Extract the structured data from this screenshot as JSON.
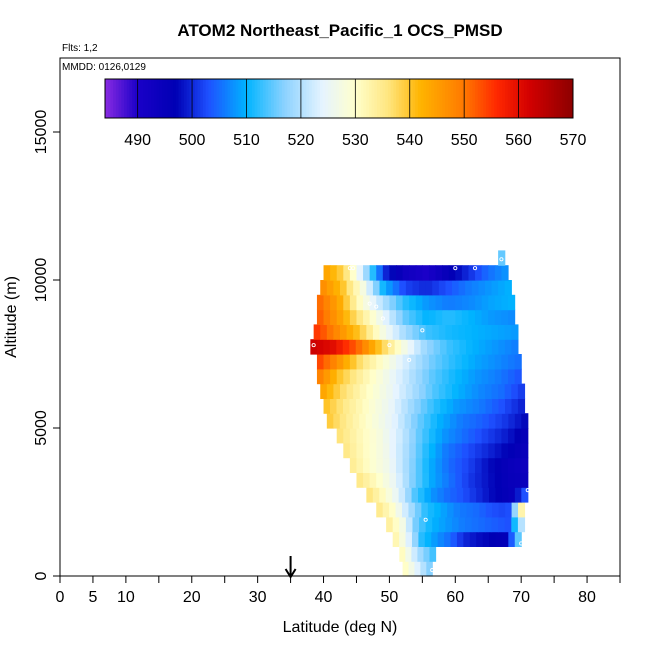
{
  "chart_data": {
    "type": "heatmap",
    "title": "ATOM2 Northeast_Pacific_1 OCS_PMSD",
    "flights_text": "Flts: 1,2",
    "dates_text": "MMDD: 0126,0129",
    "xlabel": "Latitude (deg N)",
    "ylabel": "Altitude (m)",
    "xlim": [
      0,
      85
    ],
    "ylim": [
      0,
      17500
    ],
    "x_ticks_labeled": [
      0,
      5,
      10,
      20,
      30,
      40,
      50,
      60,
      70,
      80
    ],
    "x_ticks_minor": [
      15,
      25,
      35,
      45,
      55,
      65,
      75,
      85
    ],
    "y_ticks": [
      0,
      5000,
      10000,
      15000
    ],
    "marker": {
      "type": "down-arrow",
      "x": 35
    },
    "colorbar": {
      "ticks": [
        490,
        500,
        510,
        520,
        530,
        540,
        550,
        560,
        570
      ],
      "range": [
        484,
        570
      ],
      "stops": [
        {
          "v": 484,
          "color": "#8a2be2"
        },
        {
          "v": 490,
          "color": "#1a00c8"
        },
        {
          "v": 497,
          "color": "#0000b4"
        },
        {
          "v": 503,
          "color": "#1e50ff"
        },
        {
          "v": 510,
          "color": "#00b4ff"
        },
        {
          "v": 517,
          "color": "#8cd2ff"
        },
        {
          "v": 524,
          "color": "#e6f4ff"
        },
        {
          "v": 530,
          "color": "#ffffcc"
        },
        {
          "v": 536,
          "color": "#ffe680"
        },
        {
          "v": 542,
          "color": "#ffb400"
        },
        {
          "v": 550,
          "color": "#ff7800"
        },
        {
          "v": 556,
          "color": "#ff2800"
        },
        {
          "v": 562,
          "color": "#d20000"
        },
        {
          "v": 570,
          "color": "#8c0000"
        }
      ]
    },
    "bin_height_m": 500,
    "rows": [
      {
        "alt": 0,
        "lat0": 52,
        "lat1": 56.5,
        "vals": [
          532,
          515
        ]
      },
      {
        "alt": 500,
        "lat0": 51.5,
        "lat1": 57,
        "vals": [
          533,
          520,
          512
        ]
      },
      {
        "alt": 1000,
        "lat0": 50.5,
        "lat1": 70,
        "vals": [
          534,
          525,
          512,
          508,
          505,
          500,
          498,
          497,
          496,
          520
        ]
      },
      {
        "alt": 1500,
        "lat0": 49.5,
        "lat1": 70.5,
        "vals": [
          535,
          528,
          515,
          510,
          508,
          506,
          505,
          504,
          503,
          525
        ]
      },
      {
        "alt": 2000,
        "lat0": 48,
        "lat1": 70.5,
        "vals": [
          536,
          530,
          520,
          512,
          509,
          506,
          505,
          503,
          502,
          540
        ]
      },
      {
        "alt": 2500,
        "lat0": 46.5,
        "lat1": 71,
        "vals": [
          537,
          531,
          524,
          514,
          508,
          505,
          503,
          500,
          497,
          495,
          505
        ]
      },
      {
        "alt": 3000,
        "lat0": 45,
        "lat1": 71,
        "vals": [
          536,
          531,
          525,
          516,
          509,
          505,
          501,
          498,
          495,
          494
        ]
      },
      {
        "alt": 3500,
        "lat0": 44,
        "lat1": 71,
        "vals": [
          535,
          530,
          526,
          518,
          510,
          505,
          502,
          498,
          495,
          493
        ]
      },
      {
        "alt": 4000,
        "lat0": 43,
        "lat1": 71,
        "vals": [
          536,
          531,
          527,
          520,
          512,
          506,
          503,
          500,
          497,
          494
        ]
      },
      {
        "alt": 4500,
        "lat0": 42,
        "lat1": 71,
        "vals": [
          537,
          532,
          528,
          522,
          514,
          508,
          505,
          502,
          499,
          495
        ]
      },
      {
        "alt": 5000,
        "lat0": 40.5,
        "lat1": 71,
        "vals": [
          540,
          534,
          529,
          524,
          516,
          510,
          506,
          504,
          501,
          497
        ]
      },
      {
        "alt": 5500,
        "lat0": 40,
        "lat1": 70.5,
        "vals": [
          541,
          535,
          530,
          525,
          518,
          512,
          508,
          506,
          503,
          499
        ]
      },
      {
        "alt": 6000,
        "lat0": 39.5,
        "lat1": 70.5,
        "vals": [
          545,
          537,
          531,
          526,
          520,
          514,
          510,
          507,
          505,
          501
        ]
      },
      {
        "alt": 6500,
        "lat0": 39,
        "lat1": 70,
        "vals": [
          550,
          540,
          533,
          527,
          521,
          515,
          511,
          508,
          506,
          503
        ]
      },
      {
        "alt": 7000,
        "lat0": 39,
        "lat1": 70,
        "vals": [
          555,
          546,
          536,
          529,
          522,
          516,
          512,
          509,
          507,
          505
        ]
      },
      {
        "alt": 7500,
        "lat0": 38,
        "lat1": 69.5,
        "vals": [
          563,
          560,
          552,
          540,
          528,
          518,
          513,
          510,
          508,
          506
        ]
      },
      {
        "alt": 8000,
        "lat0": 38.5,
        "lat1": 69.5,
        "vals": [
          556,
          548,
          540,
          528,
          519,
          513,
          511,
          510,
          509,
          508
        ]
      },
      {
        "alt": 8500,
        "lat0": 39,
        "lat1": 69,
        "vals": [
          553,
          545,
          535,
          525,
          515,
          510,
          512,
          510,
          508,
          507
        ]
      },
      {
        "alt": 9000,
        "lat0": 39,
        "lat1": 69,
        "vals": [
          552,
          544,
          530,
          520,
          512,
          508,
          506,
          507,
          509,
          510
        ]
      },
      {
        "alt": 9500,
        "lat0": 39.5,
        "lat1": 68.5,
        "vals": [
          548,
          541,
          528,
          510,
          502,
          500,
          503,
          506,
          508,
          510
        ]
      },
      {
        "alt": 10000,
        "lat0": 40,
        "lat1": 68,
        "vals": [
          545,
          538,
          520,
          500,
          493,
          490,
          495,
          500,
          505,
          508
        ]
      },
      {
        "alt": 10500,
        "lat0": 66.5,
        "lat1": 67.5,
        "vals": [
          515
        ]
      }
    ],
    "points": [
      {
        "lat": 38.5,
        "alt": 7800
      },
      {
        "lat": 44,
        "alt": 10400
      },
      {
        "lat": 44.5,
        "alt": 10400
      },
      {
        "lat": 47,
        "alt": 9200
      },
      {
        "lat": 48,
        "alt": 9100
      },
      {
        "lat": 49,
        "alt": 8700
      },
      {
        "lat": 50,
        "alt": 7800
      },
      {
        "lat": 53,
        "alt": 7300
      },
      {
        "lat": 55,
        "alt": 8300
      },
      {
        "lat": 60,
        "alt": 10400
      },
      {
        "lat": 63,
        "alt": 10400
      },
      {
        "lat": 67,
        "alt": 10700
      },
      {
        "lat": 71,
        "alt": 2900
      },
      {
        "lat": 55.5,
        "alt": 1900
      },
      {
        "lat": 56.5,
        "alt": 200
      },
      {
        "lat": 70,
        "alt": 1100
      }
    ]
  }
}
